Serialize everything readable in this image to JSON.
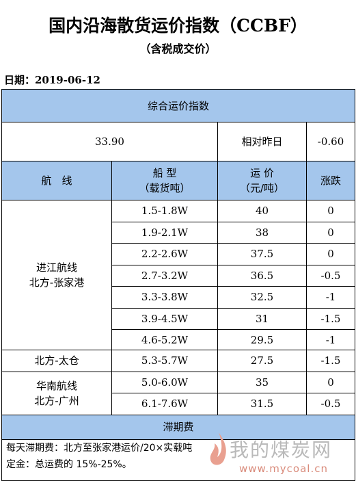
{
  "header": {
    "title": "国内沿海散货运价指数（CCBF）",
    "subtitle": "（含税成交价）",
    "date": "日期：2019-06-12"
  },
  "table": {
    "index_title": "综合运价指数",
    "index_value": "33.90",
    "change_label": "相对昨日",
    "change_value": "-0.60",
    "columns": [
      [
        "航　线"
      ],
      [
        "船 型",
        "（载货吨）"
      ],
      [
        "运 价",
        "（元/吨）"
      ],
      [
        "涨跌"
      ]
    ],
    "groups": [
      {
        "route": [
          "进江航线",
          "北方-张家港"
        ],
        "rows": [
          [
            "1.5-1.8W",
            "40",
            "0"
          ],
          [
            "1.9-2.1W",
            "38",
            "0"
          ],
          [
            "2.2-2.6W",
            "37.5",
            "0"
          ],
          [
            "2.7-3.2W",
            "36.5",
            "-0.5"
          ],
          [
            "3.3-3.8W",
            "32.5",
            "-1"
          ],
          [
            "3.9-4.5W",
            "31",
            "-1.5"
          ],
          [
            "4.6-5.2W",
            "29.5",
            "-1"
          ]
        ]
      },
      {
        "route": [
          "北方-太仓"
        ],
        "rows": [
          [
            "5.3-5.7W",
            "27.5",
            "-1.5"
          ]
        ]
      },
      {
        "route": [
          "华南航线",
          "北方-广州"
        ],
        "rows": [
          [
            "5.0-6.0W",
            "35",
            "0"
          ],
          [
            "6.1-7.6W",
            "31.5",
            "-0.5"
          ]
        ]
      }
    ],
    "demurrage_title": "滞期费",
    "notes": [
      "每天滞期费：北方至张家港运价/20×实载吨",
      "定金：总运费的 15%-25%。"
    ]
  },
  "watermark": {
    "name": "我的煤炭网",
    "url": "www.mycoal.cn"
  }
}
